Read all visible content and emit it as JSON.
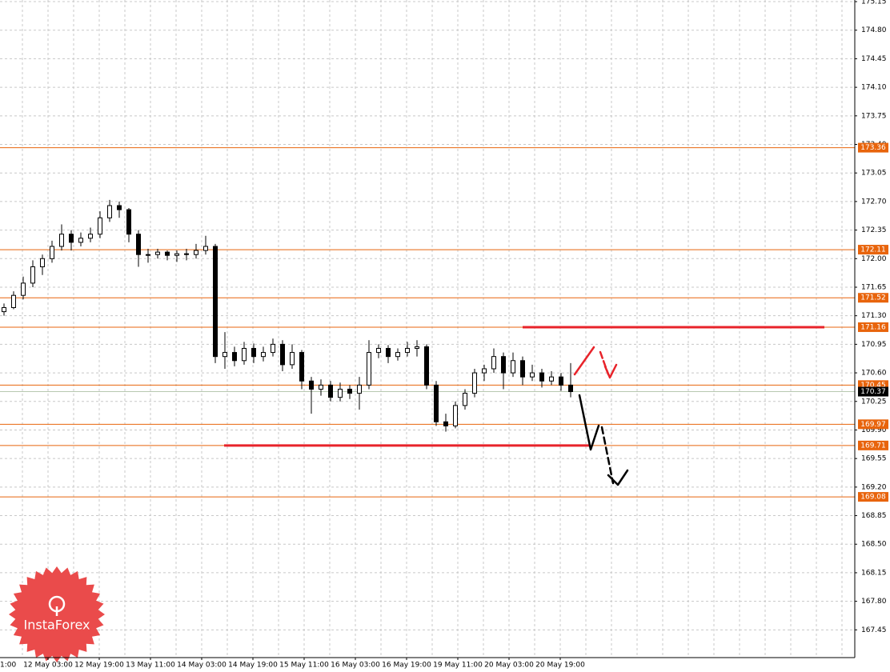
{
  "chart_data": {
    "type": "candlestick",
    "ylim": [
      167.11,
      175.17
    ],
    "yticks": [
      175.15,
      {
        "value": 174.8,
        "label": "174.80"
      },
      174.45,
      {
        "value": 174.1,
        "label": "174.10"
      },
      173.75,
      {
        "value": 173.4,
        "label": "173.40"
      },
      173.05,
      {
        "value": 172.7,
        "label": "172.70"
      },
      172.35,
      {
        "value": 172,
        "label": "172.00"
      },
      171.65,
      {
        "value": 171.3,
        "label": "171.30"
      },
      170.95,
      {
        "value": 170.6,
        "label": "170.60"
      },
      170.25,
      {
        "value": 169.9,
        "label": "169.90"
      },
      169.55,
      {
        "value": 169.2,
        "label": "169.20"
      },
      168.85,
      {
        "value": 168.5,
        "label": "168.50"
      },
      168.15,
      {
        "value": 167.8,
        "label": "167.80"
      },
      167.45
    ],
    "x_labels": [
      "1:00",
      "12 May 03:00",
      "12 May 19:00",
      "13 May 11:00",
      "14 May 03:00",
      "14 May 19:00",
      "15 May 11:00",
      "16 May 03:00",
      "16 May 19:00",
      "19 May 11:00",
      "20 May 03:00",
      "20 May 19:00"
    ],
    "grid": true,
    "levels": {
      "color": "#e8640c",
      "values": [
        173.36,
        172.11,
        171.52,
        171.16,
        170.45,
        169.97,
        169.71,
        169.08
      ]
    },
    "last_price": 170.37,
    "highlight_color": "#e8232a",
    "watermark": "InstaForex",
    "ohlc": [
      [
        171.35,
        171.45,
        171.3,
        171.4
      ],
      [
        171.4,
        171.6,
        171.38,
        171.55
      ],
      [
        171.55,
        171.78,
        171.5,
        171.7
      ],
      [
        171.7,
        171.98,
        171.65,
        171.9
      ],
      [
        171.9,
        172.05,
        171.8,
        172.0
      ],
      [
        172.0,
        172.22,
        171.95,
        172.15
      ],
      [
        172.15,
        172.42,
        172.1,
        172.3
      ],
      [
        172.3,
        172.35,
        172.1,
        172.2
      ],
      [
        172.2,
        172.32,
        172.15,
        172.25
      ],
      [
        172.25,
        172.38,
        172.2,
        172.3
      ],
      [
        172.3,
        172.58,
        172.25,
        172.5
      ],
      [
        172.5,
        172.72,
        172.45,
        172.65
      ],
      [
        172.65,
        172.7,
        172.5,
        172.6
      ],
      [
        172.6,
        172.62,
        172.2,
        172.3
      ],
      [
        172.3,
        172.35,
        171.9,
        172.05
      ],
      [
        172.05,
        172.12,
        171.95,
        172.05
      ],
      [
        172.05,
        172.12,
        172.0,
        172.08
      ],
      [
        172.08,
        172.1,
        171.98,
        172.04
      ],
      [
        172.04,
        172.1,
        171.96,
        172.06
      ],
      [
        172.06,
        172.12,
        171.98,
        172.05
      ],
      [
        172.05,
        172.18,
        172.0,
        172.1
      ],
      [
        172.1,
        172.28,
        172.05,
        172.15
      ],
      [
        172.15,
        172.18,
        170.72,
        170.8
      ],
      [
        170.8,
        171.1,
        170.65,
        170.85
      ],
      [
        170.85,
        170.92,
        170.68,
        170.75
      ],
      [
        170.75,
        170.98,
        170.7,
        170.9
      ],
      [
        170.9,
        170.96,
        170.72,
        170.8
      ],
      [
        170.8,
        170.92,
        170.74,
        170.85
      ],
      [
        170.85,
        171.02,
        170.8,
        170.95
      ],
      [
        170.95,
        171.0,
        170.62,
        170.7
      ],
      [
        170.7,
        170.95,
        170.65,
        170.85
      ],
      [
        170.85,
        170.88,
        170.4,
        170.5
      ],
      [
        170.5,
        170.55,
        170.1,
        170.4
      ],
      [
        170.4,
        170.52,
        170.32,
        170.45
      ],
      [
        170.45,
        170.5,
        170.25,
        170.3
      ],
      [
        170.3,
        170.48,
        170.25,
        170.4
      ],
      [
        170.4,
        170.45,
        170.28,
        170.35
      ],
      [
        170.35,
        170.55,
        170.15,
        170.45
      ],
      [
        170.45,
        171.0,
        170.4,
        170.85
      ],
      [
        170.85,
        170.95,
        170.78,
        170.9
      ],
      [
        170.9,
        170.94,
        170.72,
        170.8
      ],
      [
        170.8,
        170.9,
        170.75,
        170.85
      ],
      [
        170.85,
        170.98,
        170.8,
        170.9
      ],
      [
        170.9,
        171.0,
        170.8,
        170.92
      ],
      [
        170.92,
        170.95,
        170.4,
        170.45
      ],
      [
        170.45,
        170.5,
        169.95,
        170.0
      ],
      [
        170.0,
        170.1,
        169.88,
        169.95
      ],
      [
        169.95,
        170.25,
        169.92,
        170.2
      ],
      [
        170.2,
        170.4,
        170.15,
        170.35
      ],
      [
        170.35,
        170.65,
        170.3,
        170.6
      ],
      [
        170.6,
        170.7,
        170.5,
        170.65
      ],
      [
        170.65,
        170.9,
        170.6,
        170.8
      ],
      [
        170.8,
        170.85,
        170.4,
        170.6
      ],
      [
        170.6,
        170.85,
        170.55,
        170.75
      ],
      [
        170.75,
        170.8,
        170.45,
        170.55
      ],
      [
        170.55,
        170.7,
        170.5,
        170.6
      ],
      [
        170.6,
        170.65,
        170.42,
        170.5
      ],
      [
        170.5,
        170.62,
        170.45,
        170.55
      ],
      [
        170.55,
        170.6,
        170.38,
        170.45
      ],
      [
        170.45,
        170.72,
        170.3,
        170.37
      ]
    ]
  }
}
